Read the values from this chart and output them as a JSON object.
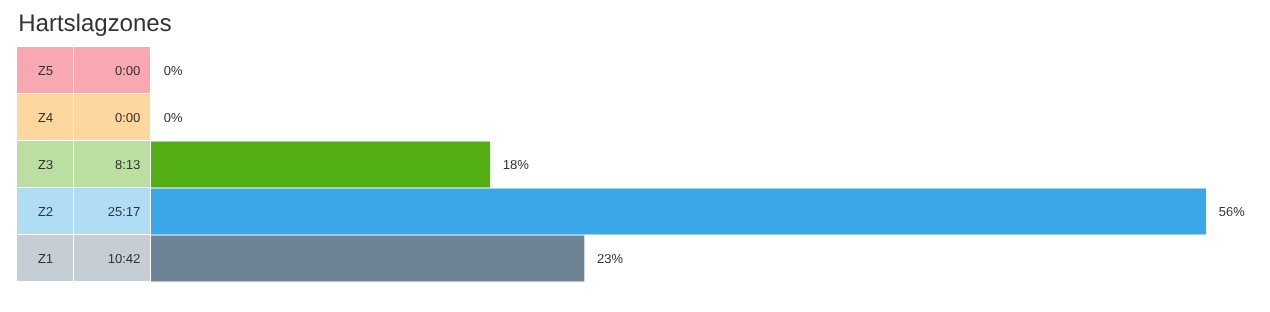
{
  "chart_data": {
    "type": "bar",
    "orientation": "horizontal",
    "title": "Hartslagzones",
    "categories": [
      "Z5",
      "Z4",
      "Z3",
      "Z2",
      "Z1"
    ],
    "values": [
      0,
      0,
      18,
      56,
      23
    ],
    "value_labels": [
      "0%",
      "0%",
      "18%",
      "56%",
      "23%"
    ],
    "colors": [
      "#f02339",
      "#fa9b0a",
      "#52ae12",
      "#3aa8e8",
      "#6e8494"
    ],
    "annotations": [
      "0:00",
      "0:00",
      "8:13",
      "25:17",
      "10:42"
    ]
  }
}
